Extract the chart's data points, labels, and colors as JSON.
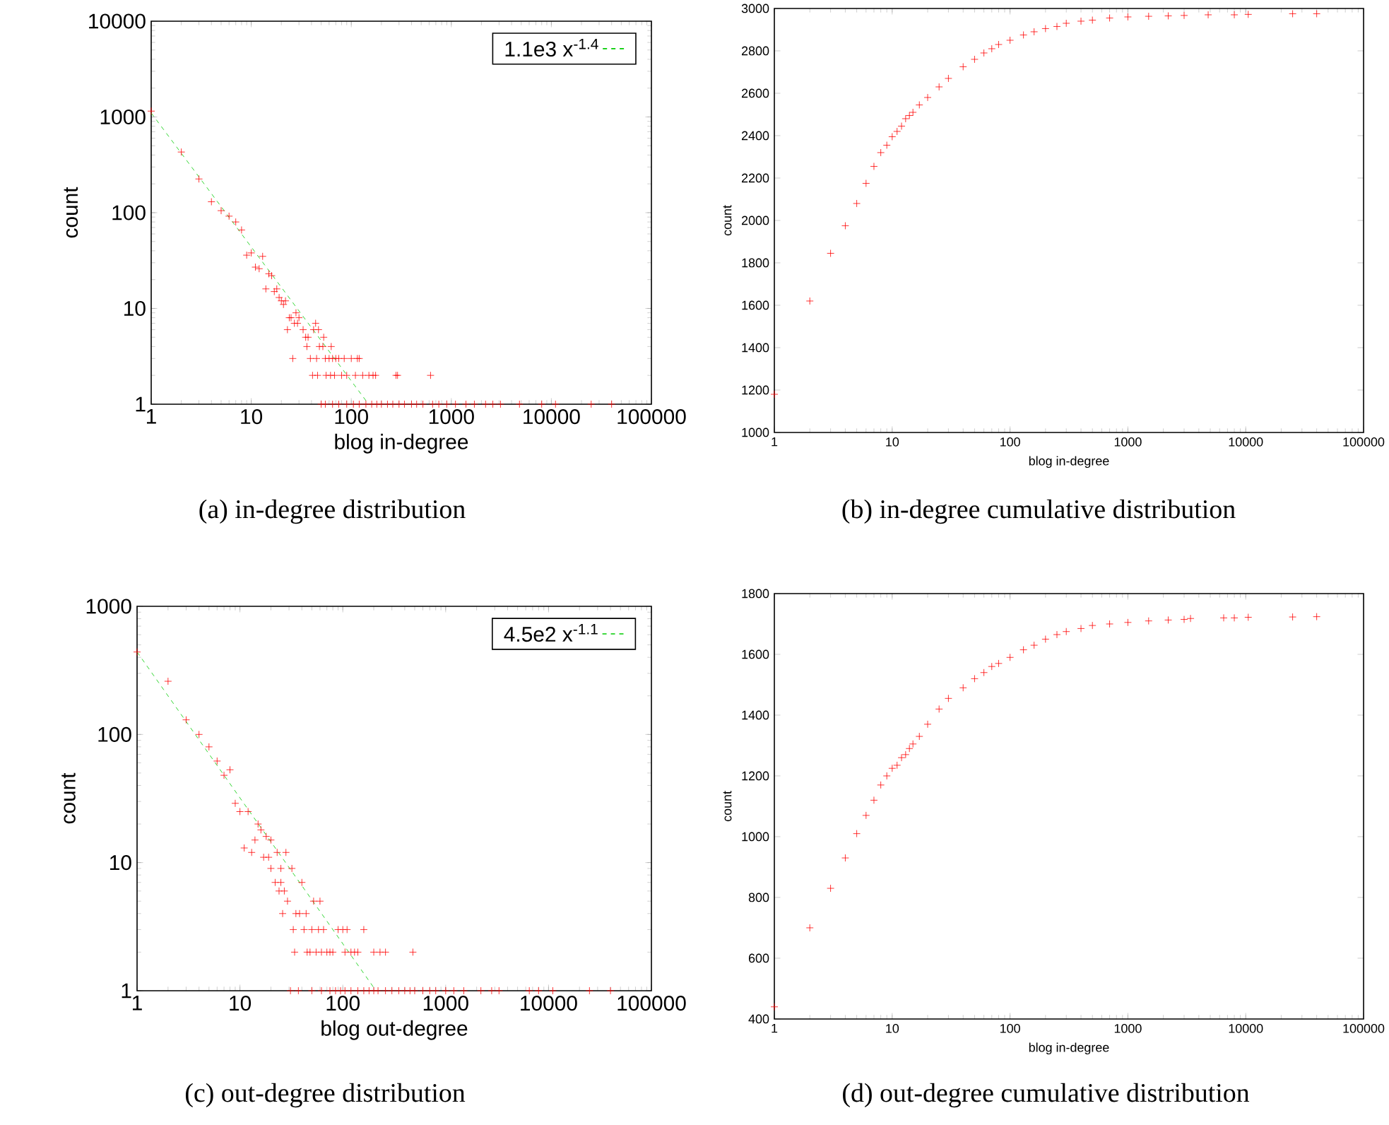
{
  "chart_data": [
    {
      "type": "scatter",
      "xlabel": "blog in-degree",
      "ylabel": "count",
      "log": "xy",
      "xlim": [
        1,
        100000
      ],
      "ylim": [
        1,
        10000
      ],
      "xticks": [
        1,
        10,
        100,
        1000,
        10000,
        100000
      ],
      "yticks": [
        1,
        10,
        100,
        1000,
        10000
      ],
      "legend": "top right",
      "annotations": [
        "(a) in-degree distribution"
      ],
      "series": [
        {
          "color": "#ff0000",
          "marker": "cross",
          "x": [
            1,
            2,
            3,
            4,
            5,
            6,
            7,
            8,
            9,
            10,
            11,
            12,
            13,
            14,
            15,
            16,
            17,
            18,
            19,
            20,
            21,
            22,
            23,
            24,
            25,
            26,
            27,
            28,
            29,
            30,
            33,
            35,
            36,
            37,
            39,
            41,
            42,
            44,
            45,
            46,
            47,
            48,
            52,
            53,
            55,
            56,
            60,
            62,
            63,
            65,
            68,
            70,
            75,
            80,
            85,
            90,
            100,
            110,
            115,
            120,
            130,
            150,
            165,
            175,
            280,
            290,
            620,
            50,
            55,
            65,
            75,
            90,
            105,
            120,
            140,
            160,
            180,
            200,
            230,
            260,
            300,
            340,
            400,
            450,
            520,
            650,
            750,
            900,
            1100,
            1400,
            1700,
            2200,
            2600,
            3100,
            4800,
            8000,
            11000,
            25000,
            40000
          ],
          "values": [
            1150,
            430,
            225,
            130,
            105,
            92,
            80,
            66,
            36,
            38,
            27,
            26,
            35,
            16,
            23,
            22,
            15,
            16,
            13,
            12,
            11,
            12,
            6,
            8,
            8,
            3,
            7,
            9,
            7,
            8,
            6,
            5,
            4,
            5,
            3,
            2,
            6,
            7,
            3,
            2,
            6,
            4,
            4,
            5,
            3,
            2,
            3,
            2,
            4,
            3,
            2,
            3,
            3,
            2,
            3,
            2,
            3,
            2,
            3,
            3,
            2,
            2,
            2,
            2,
            2,
            2,
            2,
            1,
            1,
            1,
            1,
            1,
            1,
            1,
            1,
            1,
            1,
            1,
            1,
            1,
            1,
            1,
            1,
            1,
            1,
            1,
            1,
            1,
            1,
            1,
            1,
            1,
            1,
            1,
            1,
            1,
            1,
            1,
            1
          ]
        },
        {
          "type": "line",
          "name": "1.1e3 x$^{-1.4}$",
          "color": "#00cc00",
          "marker": "none",
          "line_style": "dashed",
          "x": [
            1,
            149
          ],
          "values": [
            1100,
            1
          ]
        }
      ]
    },
    {
      "type": "scatter",
      "xlabel": "blog in-degree",
      "ylabel": "count",
      "log": "x",
      "xlim": [
        1,
        100000
      ],
      "ylim": [
        1000,
        3000
      ],
      "xticks": [
        1,
        10,
        100,
        1000,
        10000,
        100000
      ],
      "yticks": [
        1000,
        1200,
        1400,
        1600,
        1800,
        2000,
        2200,
        2400,
        2600,
        2800,
        3000
      ],
      "marker": "cross",
      "annotations": [
        "(b) in-degree cumulative distribution"
      ],
      "series": [
        {
          "color": "#ff0000",
          "x": [
            1,
            2,
            3,
            4,
            5,
            6,
            7,
            8,
            9,
            10,
            11,
            12,
            13,
            14,
            15,
            17,
            20,
            25,
            30,
            40,
            50,
            60,
            70,
            80,
            100,
            130,
            160,
            200,
            250,
            300,
            400,
            500,
            700,
            1000,
            1500,
            2200,
            3000,
            4800,
            8000,
            10500,
            25000,
            40000
          ],
          "values": [
            1180,
            1620,
            1845,
            1975,
            2080,
            2175,
            2255,
            2320,
            2355,
            2395,
            2420,
            2445,
            2480,
            2495,
            2510,
            2545,
            2580,
            2630,
            2670,
            2725,
            2760,
            2790,
            2810,
            2830,
            2850,
            2875,
            2890,
            2905,
            2915,
            2930,
            2940,
            2945,
            2955,
            2960,
            2963,
            2965,
            2967,
            2970,
            2970,
            2972,
            2975,
            2975
          ]
        }
      ]
    },
    {
      "type": "scatter",
      "xlabel": "blog out-degree",
      "ylabel": "count",
      "log": "xy",
      "xlim": [
        1,
        100000
      ],
      "ylim": [
        1,
        1000
      ],
      "xticks": [
        1,
        10,
        100,
        1000,
        10000,
        100000
      ],
      "yticks": [
        1,
        10,
        100,
        1000
      ],
      "legend": "top right",
      "annotations": [
        "(c) out-degree distribution"
      ],
      "series": [
        {
          "color": "#ff0000",
          "marker": "cross",
          "x": [
            1,
            2,
            3,
            4,
            5,
            6,
            7,
            8,
            9,
            10,
            11,
            12,
            13,
            14,
            15,
            16,
            17,
            18,
            19,
            20,
            20,
            22,
            23,
            24,
            25,
            25,
            26,
            27,
            28,
            29,
            32,
            33,
            34,
            35,
            38,
            40,
            42,
            44,
            45,
            48,
            50,
            52,
            55,
            58,
            60,
            62,
            65,
            70,
            75,
            80,
            90,
            100,
            105,
            110,
            120,
            130,
            140,
            160,
            200,
            230,
            260,
            480,
            31,
            37,
            50,
            62,
            75,
            85,
            95,
            105,
            120,
            140,
            160,
            180,
            200,
            220,
            260,
            300,
            350,
            400,
            450,
            500,
            600,
            700,
            800,
            1000,
            1200,
            1500,
            2200,
            2800,
            3300,
            6500,
            8000,
            11000,
            25000,
            40000
          ],
          "values": [
            440,
            260,
            130,
            100,
            80,
            62,
            48,
            53,
            29,
            25,
            13,
            25,
            12,
            15,
            20,
            18,
            11,
            16,
            11,
            15,
            9,
            7,
            12,
            6,
            9,
            7,
            4,
            6,
            12,
            5,
            9,
            3,
            2,
            4,
            4,
            7,
            3,
            4,
            2,
            2,
            3,
            5,
            2,
            3,
            5,
            2,
            3,
            2,
            2,
            2,
            3,
            3,
            2,
            3,
            2,
            2,
            2,
            3,
            2,
            2,
            2,
            2,
            1,
            1,
            1,
            1,
            1,
            1,
            1,
            1,
            1,
            1,
            1,
            1,
            1,
            1,
            1,
            1,
            1,
            1,
            1,
            1,
            1,
            1,
            1,
            1,
            1,
            1,
            1,
            1,
            1,
            1,
            1,
            1,
            1,
            1
          ]
        },
        {
          "type": "line",
          "name": "4.5e2 x$^{-1.1}$",
          "color": "#00cc00",
          "marker": "none",
          "line_style": "dashed",
          "x": [
            1,
            210
          ],
          "values": [
            440,
            1
          ]
        }
      ]
    },
    {
      "type": "scatter",
      "xlabel": "blog in-degree",
      "ylabel": "count",
      "log": "x",
      "xlim": [
        1,
        100000
      ],
      "ylim": [
        400,
        1800
      ],
      "xticks": [
        1,
        10,
        100,
        1000,
        10000,
        100000
      ],
      "yticks": [
        400,
        600,
        800,
        1000,
        1200,
        1400,
        1600,
        1800
      ],
      "marker": "cross",
      "annotations": [
        "(d) out-degree cumulative distribution"
      ],
      "series": [
        {
          "color": "#ff0000",
          "x": [
            1,
            2,
            3,
            4,
            5,
            6,
            7,
            8,
            9,
            10,
            11,
            12,
            13,
            14,
            15,
            17,
            20,
            25,
            30,
            40,
            50,
            60,
            70,
            80,
            100,
            130,
            160,
            200,
            250,
            300,
            400,
            500,
            700,
            1000,
            1500,
            2200,
            3000,
            3400,
            6500,
            8000,
            10500,
            25000,
            40000
          ],
          "values": [
            440,
            700,
            830,
            930,
            1010,
            1070,
            1120,
            1170,
            1200,
            1225,
            1235,
            1260,
            1270,
            1290,
            1305,
            1330,
            1370,
            1420,
            1455,
            1490,
            1520,
            1540,
            1560,
            1570,
            1590,
            1615,
            1630,
            1650,
            1665,
            1675,
            1685,
            1695,
            1700,
            1705,
            1710,
            1713,
            1715,
            1718,
            1720,
            1720,
            1722,
            1723,
            1724
          ]
        }
      ]
    }
  ]
}
